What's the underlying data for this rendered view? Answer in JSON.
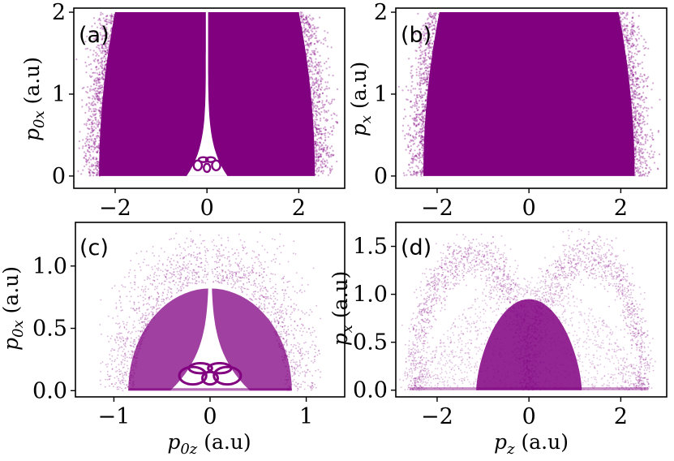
{
  "colors": {
    "points": "#800080",
    "frame": "#000000",
    "background": "#ffffff"
  },
  "chart_data": [
    {
      "type": "scatter",
      "panel_label": "(a)",
      "xlabel": "",
      "ylabel_main": "p",
      "ylabel_sub": "0x",
      "ylabel_unit": " (a.u)",
      "xlim": [
        -2.9,
        3.0
      ],
      "ylim": [
        -0.15,
        2.05
      ],
      "xticks": [
        -2,
        0,
        2
      ],
      "xtick_labels": [
        "−2",
        "0",
        "2"
      ],
      "yticks": [
        0,
        1,
        2
      ],
      "ytick_labels": [
        "0",
        "1",
        "2"
      ],
      "grid": false,
      "distribution": "dense band filling p0z in [-2.8, 2.8], p0x in [0, 2], with an empty cusp-shaped gap at p0z = 0 containing small ring structures near p0x = 0.1-0.2"
    },
    {
      "type": "scatter",
      "panel_label": "(b)",
      "xlabel": "",
      "ylabel_main": "p",
      "ylabel_sub": "x",
      "ylabel_unit": " (a.u)",
      "xlim": [
        -2.9,
        3.0
      ],
      "ylim": [
        -0.15,
        2.05
      ],
      "xticks": [
        -2,
        0,
        2
      ],
      "xtick_labels": [
        "−2",
        "0",
        "2"
      ],
      "yticks": [
        0,
        1,
        2
      ],
      "ytick_labels": [
        "0",
        "1",
        "2"
      ],
      "grid": false,
      "distribution": "dense band filling pz in [-2.8, 2.8], px in [0, 2], no gap"
    },
    {
      "type": "scatter",
      "panel_label": "(c)",
      "xlabel_main": "p",
      "xlabel_sub": "0z",
      "xlabel_unit": " (a.u)",
      "ylabel_main": "p",
      "ylabel_sub": "0x",
      "ylabel_unit": " (a.u)",
      "xlim": [
        -1.4,
        1.4
      ],
      "ylim": [
        -0.05,
        1.35
      ],
      "xticks": [
        -1,
        0,
        1
      ],
      "xtick_labels": [
        "−1",
        "0",
        "1"
      ],
      "yticks": [
        0.0,
        0.5,
        1.0
      ],
      "ytick_labels": [
        "0.0",
        "0.5",
        "1.0"
      ],
      "grid": false,
      "distribution": "dome of points p0z in [-1, 1], p0x in [0, 1.2], empty cusp gap around p0z = 0 with ring structures near p0x = 0.1-0.2"
    },
    {
      "type": "scatter",
      "panel_label": "(d)",
      "xlabel_main": "p",
      "xlabel_sub": "z",
      "xlabel_unit": " (a.u)",
      "ylabel_main": "p",
      "ylabel_sub": "x",
      "ylabel_unit": " (a.u)",
      "xlim": [
        -2.9,
        3.0
      ],
      "ylim": [
        -0.07,
        1.75
      ],
      "xticks": [
        -2,
        0,
        2
      ],
      "xtick_labels": [
        "−2",
        "0",
        "2"
      ],
      "yticks": [
        0.0,
        0.5,
        1.0,
        1.5
      ],
      "ytick_labels": [
        "0.0",
        "0.5",
        "1.0",
        "1.5"
      ],
      "grid": false,
      "distribution": "two overlapping arches peaking near pz = ±1.2 at px = 1.6, sparse outside, dense core pz in [-1.3, 1.3], px < 0.9"
    }
  ]
}
